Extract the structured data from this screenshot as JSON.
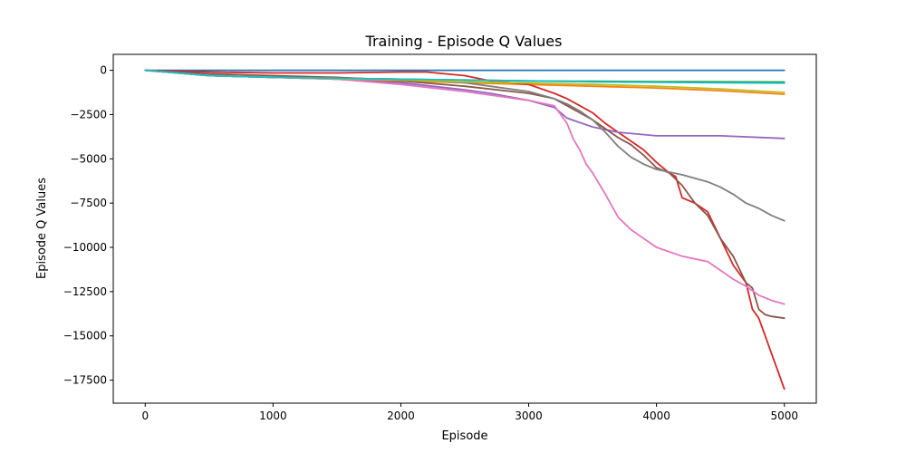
{
  "chart_data": {
    "type": "line",
    "title": "Training - Episode Q Values",
    "xlabel": "Episode",
    "ylabel": "Episode Q Values",
    "xlim": [
      -250,
      5250
    ],
    "ylim": [
      -18800,
      900
    ],
    "xticks": [
      0,
      1000,
      2000,
      3000,
      4000,
      5000
    ],
    "yticks": [
      0,
      -2500,
      -5000,
      -7500,
      -10000,
      -12500,
      -15000,
      -17500
    ],
    "xtick_labels": [
      "0",
      "1000",
      "2000",
      "3000",
      "4000",
      "5000"
    ],
    "ytick_labels": [
      "0",
      "−2500",
      "−5000",
      "−7500",
      "−10000",
      "−12500",
      "−15000",
      "−17500"
    ],
    "grid": false,
    "series": [
      {
        "color": "#1f77b4",
        "x": [
          0,
          1000,
          2000,
          3000,
          4000,
          5000
        ],
        "y": [
          0,
          0,
          0,
          0,
          0,
          0
        ]
      },
      {
        "color": "#ff7f0e",
        "x": [
          0,
          500,
          1000,
          1500,
          2000,
          2500,
          3000,
          3500,
          4000,
          4500,
          5000
        ],
        "y": [
          0,
          -300,
          -400,
          -500,
          -600,
          -700,
          -800,
          -900,
          -1000,
          -1150,
          -1350
        ]
      },
      {
        "color": "#2ca02c",
        "x": [
          0,
          500,
          1000,
          1500,
          2000,
          2500,
          3000,
          3500,
          4000,
          4500,
          5000
        ],
        "y": [
          0,
          -300,
          -400,
          -450,
          -500,
          -550,
          -600,
          -620,
          -640,
          -650,
          -660
        ]
      },
      {
        "color": "#d62728",
        "x": [
          0,
          500,
          1000,
          1500,
          2000,
          2200,
          2500,
          2700,
          3000,
          3200,
          3300,
          3400,
          3500,
          3600,
          3700,
          3800,
          3900,
          4000,
          4100,
          4150,
          4200,
          4300,
          4400,
          4500,
          4600,
          4700,
          4750,
          4800,
          4850,
          4900,
          4950,
          5000
        ],
        "y": [
          0,
          -100,
          -150,
          -150,
          -100,
          -100,
          -300,
          -600,
          -800,
          -1300,
          -1600,
          -2000,
          -2400,
          -3000,
          -3500,
          -4000,
          -4500,
          -5200,
          -5800,
          -6000,
          -7200,
          -7500,
          -8000,
          -9500,
          -11000,
          -12000,
          -13500,
          -14000,
          -15000,
          -16000,
          -17000,
          -18000
        ]
      },
      {
        "color": "#9467bd",
        "x": [
          0,
          500,
          1000,
          1500,
          2000,
          2500,
          2700,
          3000,
          3200,
          3300,
          3500,
          3700,
          4000,
          4500,
          5000
        ],
        "y": [
          0,
          -300,
          -400,
          -500,
          -700,
          -1100,
          -1300,
          -1700,
          -2100,
          -2700,
          -3200,
          -3500,
          -3700,
          -3700,
          -3850
        ]
      },
      {
        "color": "#8c564b",
        "x": [
          0,
          500,
          1000,
          1500,
          1800,
          2000,
          2500,
          3000,
          3200,
          3300,
          3400,
          3500,
          3600,
          3700,
          3800,
          3900,
          4000,
          4100,
          4200,
          4300,
          4400,
          4500,
          4600,
          4700,
          4750,
          4800,
          4850,
          4900,
          5000
        ],
        "y": [
          0,
          -200,
          -300,
          -400,
          -500,
          -600,
          -900,
          -1300,
          -1600,
          -2000,
          -2400,
          -2800,
          -3300,
          -3800,
          -4200,
          -4800,
          -5500,
          -5800,
          -6500,
          -7500,
          -8200,
          -9500,
          -10500,
          -12000,
          -12300,
          -13500,
          -13800,
          -13900,
          -14000
        ]
      },
      {
        "color": "#e377c2",
        "x": [
          0,
          500,
          1000,
          1500,
          2000,
          2500,
          3000,
          3200,
          3300,
          3350,
          3400,
          3450,
          3500,
          3600,
          3700,
          3800,
          3900,
          4000,
          4200,
          4400,
          4500,
          4600,
          4700,
          4800,
          4900,
          5000
        ],
        "y": [
          0,
          -300,
          -400,
          -500,
          -800,
          -1200,
          -1700,
          -2000,
          -3000,
          -3900,
          -4500,
          -5300,
          -5800,
          -7000,
          -8300,
          -9000,
          -9500,
          -10000,
          -10500,
          -10800,
          -11300,
          -11800,
          -12200,
          -12700,
          -13000,
          -13200
        ]
      },
      {
        "color": "#7f7f7f",
        "x": [
          0,
          500,
          1000,
          1500,
          2000,
          2500,
          3000,
          3200,
          3300,
          3400,
          3500,
          3600,
          3700,
          3800,
          3900,
          4000,
          4200,
          4300,
          4400,
          4500,
          4600,
          4700,
          4800,
          4900,
          5000
        ],
        "y": [
          0,
          -300,
          -400,
          -450,
          -500,
          -700,
          -1200,
          -1600,
          -1900,
          -2300,
          -2800,
          -3500,
          -4300,
          -4900,
          -5300,
          -5600,
          -5900,
          -6100,
          -6300,
          -6600,
          -7000,
          -7500,
          -7800,
          -8200,
          -8500
        ]
      },
      {
        "color": "#bcbd22",
        "x": [
          0,
          500,
          1000,
          1500,
          2000,
          2500,
          3000,
          3500,
          4000,
          4500,
          5000
        ],
        "y": [
          0,
          -300,
          -400,
          -480,
          -550,
          -650,
          -720,
          -800,
          -900,
          -1050,
          -1250
        ]
      },
      {
        "color": "#17becf",
        "x": [
          0,
          500,
          1000,
          1500,
          2000,
          2500,
          3000,
          3500,
          4000,
          4500,
          5000
        ],
        "y": [
          0,
          -300,
          -400,
          -450,
          -500,
          -550,
          -600,
          -650,
          -680,
          -700,
          -720
        ]
      }
    ]
  }
}
